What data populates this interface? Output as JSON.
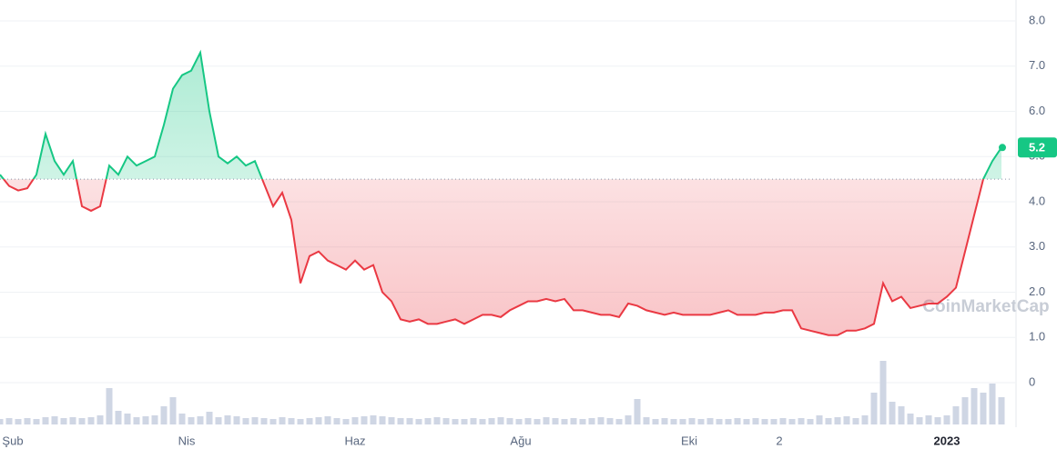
{
  "chart_data": {
    "type": "line",
    "values": [
      4.6,
      4.35,
      4.25,
      4.3,
      4.6,
      5.5,
      4.9,
      4.6,
      4.9,
      3.9,
      3.8,
      3.9,
      4.8,
      4.6,
      5.0,
      4.8,
      4.9,
      5.0,
      5.7,
      6.5,
      6.8,
      6.9,
      7.3,
      6.0,
      5.0,
      4.85,
      5.0,
      4.8,
      4.9,
      4.4,
      3.9,
      4.2,
      3.6,
      2.2,
      2.8,
      2.9,
      2.7,
      2.6,
      2.5,
      2.7,
      2.5,
      2.6,
      2.0,
      1.8,
      1.4,
      1.35,
      1.4,
      1.3,
      1.3,
      1.35,
      1.4,
      1.3,
      1.4,
      1.5,
      1.5,
      1.45,
      1.6,
      1.7,
      1.8,
      1.8,
      1.85,
      1.8,
      1.85,
      1.6,
      1.6,
      1.55,
      1.5,
      1.5,
      1.45,
      1.75,
      1.7,
      1.6,
      1.55,
      1.5,
      1.55,
      1.5,
      1.5,
      1.5,
      1.5,
      1.55,
      1.6,
      1.5,
      1.5,
      1.5,
      1.55,
      1.55,
      1.6,
      1.6,
      1.2,
      1.15,
      1.1,
      1.05,
      1.05,
      1.15,
      1.15,
      1.2,
      1.3,
      2.2,
      1.8,
      1.9,
      1.65,
      1.7,
      1.75,
      1.75,
      1.9,
      2.1,
      2.9,
      3.7,
      4.5,
      4.9,
      5.2
    ],
    "volume": [
      6,
      7,
      6,
      7,
      6,
      8,
      9,
      7,
      8,
      7,
      8,
      10,
      40,
      15,
      12,
      8,
      9,
      10,
      20,
      30,
      12,
      8,
      9,
      14,
      8,
      10,
      9,
      7,
      8,
      7,
      6,
      8,
      7,
      6,
      7,
      8,
      9,
      7,
      6,
      8,
      9,
      10,
      9,
      8,
      7,
      7,
      6,
      7,
      8,
      7,
      6,
      6,
      7,
      6,
      7,
      8,
      7,
      6,
      7,
      6,
      8,
      7,
      6,
      7,
      6,
      7,
      8,
      7,
      6,
      10,
      28,
      8,
      6,
      7,
      6,
      6,
      7,
      6,
      7,
      6,
      6,
      7,
      6,
      7,
      6,
      6,
      7,
      6,
      7,
      6,
      10,
      7,
      8,
      9,
      7,
      10,
      35,
      70,
      25,
      20,
      12,
      8,
      10,
      8,
      10,
      20,
      30,
      40,
      35,
      45,
      30
    ],
    "up_color": "#16c784",
    "down_color": "#ea3943",
    "baseline": 4.5,
    "current_price": 5.2,
    "watermark": "CoinMarketCap",
    "xlim": [
      0,
      110
    ],
    "xticks": [
      {
        "value": 1.4,
        "label": "Şub"
      },
      {
        "value": 20.5,
        "label": "Nis"
      },
      {
        "value": 39,
        "label": "Haz"
      },
      {
        "value": 57.2,
        "label": "Ağu"
      },
      {
        "value": 75.7,
        "label": "Eki"
      },
      {
        "value": 85.6,
        "label": "2"
      },
      {
        "value": 104,
        "label": "2023"
      }
    ],
    "ylim": [
      0,
      8
    ],
    "yticks": [
      0,
      {
        "value": 1,
        "label": "1.0"
      },
      {
        "value": 2,
        "label": "2.0"
      },
      {
        "value": 3,
        "label": "3.0"
      },
      {
        "value": 4,
        "label": "4.0"
      },
      {
        "value": 5,
        "label": "5.0"
      },
      {
        "value": 6,
        "label": "6.0"
      },
      {
        "value": 7,
        "label": "7.0"
      },
      {
        "value": 8,
        "label": "8.0"
      }
    ],
    "grid": true
  }
}
